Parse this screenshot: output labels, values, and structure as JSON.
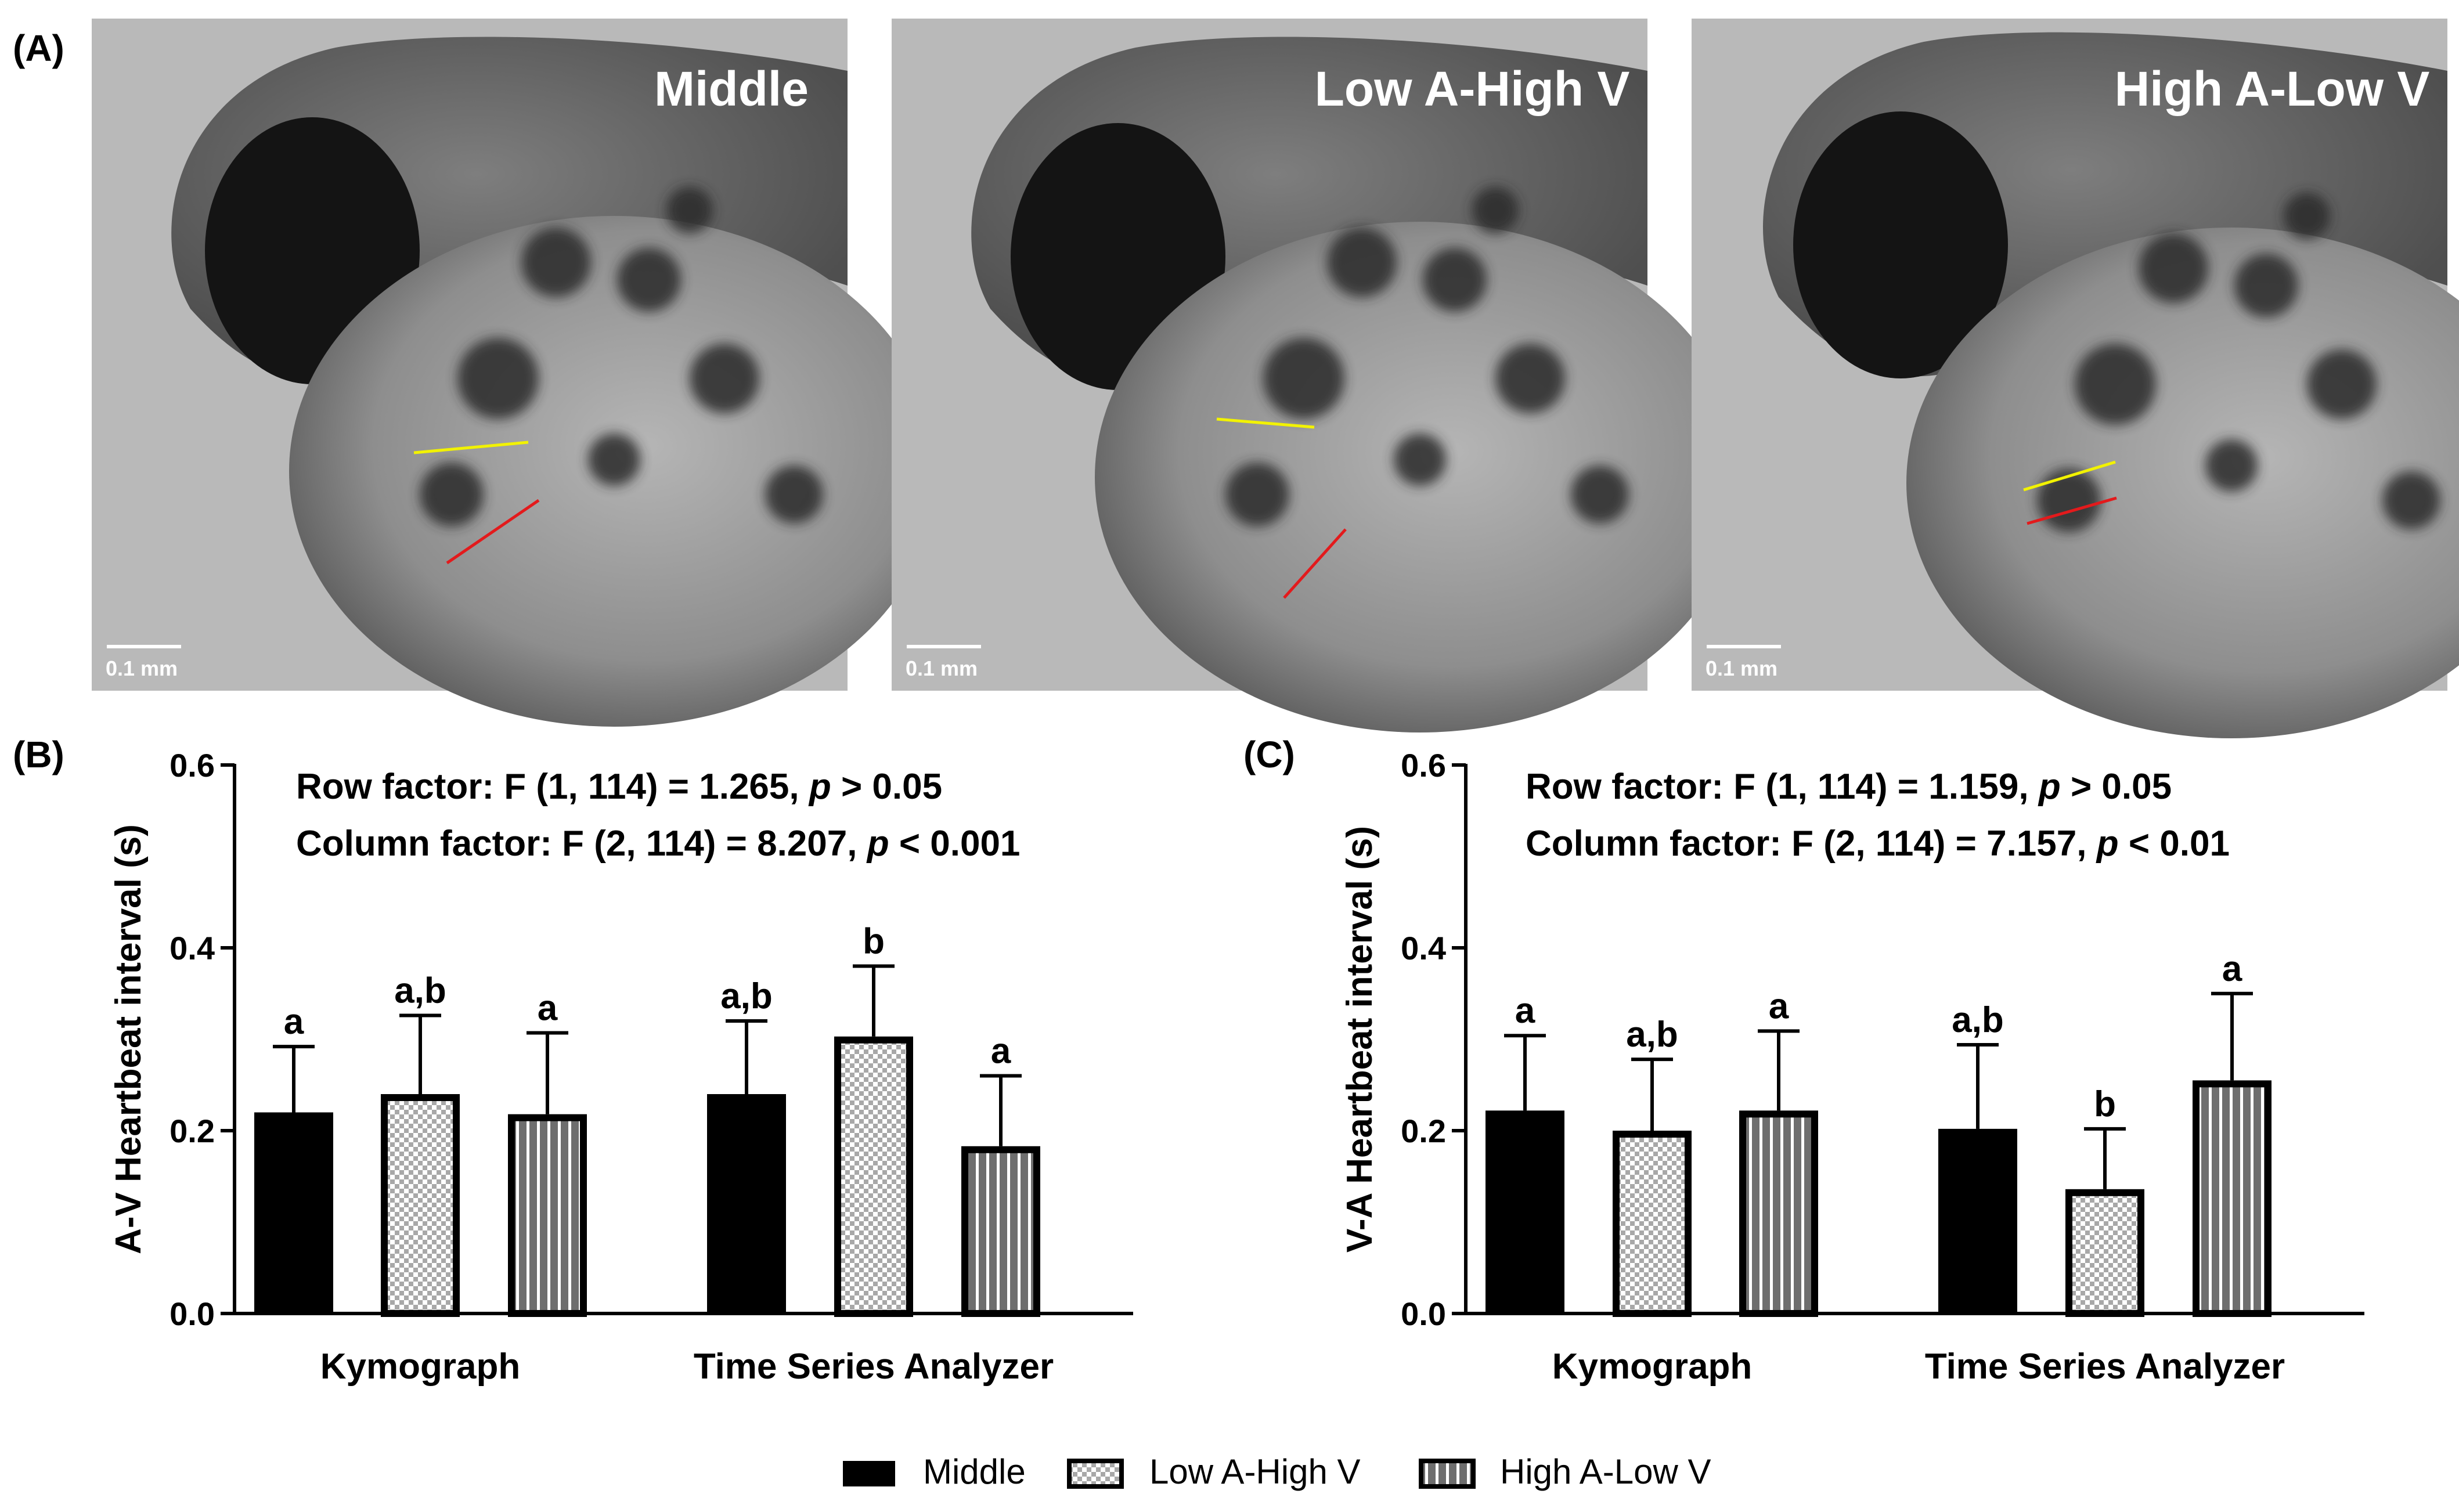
{
  "panel_labels": {
    "a": "(A)",
    "b": "(B)",
    "c": "(C)"
  },
  "images": [
    {
      "label": "Middle",
      "scale": "0.1 mm"
    },
    {
      "label": "Low A-High V",
      "scale": "0.1 mm"
    },
    {
      "label": "High A-Low V",
      "scale": "0.1 mm"
    }
  ],
  "colors": {
    "black": "#000000",
    "yellow": "#f2f200",
    "red": "#e31a1c",
    "gray": "#6e6e6e"
  },
  "legend": [
    {
      "label": "Middle",
      "pattern": "solid"
    },
    {
      "label": "Low A-High V",
      "pattern": "checker"
    },
    {
      "label": "High A-Low V",
      "pattern": "stripes"
    }
  ],
  "chart_data": [
    {
      "type": "bar",
      "panel": "B",
      "ylabel": "A-V Heartbeat interval (s)",
      "ylim": [
        0,
        0.6
      ],
      "yticks": [
        "0.0",
        "0.2",
        "0.4",
        "0.6"
      ],
      "categories": [
        "Kymograph",
        "Time Series Analyzer"
      ],
      "stats": {
        "row": {
          "prefix": "Row factor: F (1, 114) = 1.265, ",
          "p": "p",
          "suffix": " > 0.05"
        },
        "col": {
          "prefix": "Column factor: F (2, 114) = 8.207, ",
          "p": "p",
          "suffix": " < 0.001"
        }
      },
      "series": [
        {
          "name": "Middle",
          "values": [
            0.22,
            0.24
          ],
          "errors": [
            0.072,
            0.08
          ],
          "letters": [
            "a",
            "a,b"
          ]
        },
        {
          "name": "Low A-High V",
          "values": [
            0.24,
            0.303
          ],
          "errors": [
            0.086,
            0.077
          ],
          "letters": [
            "a,b",
            "b"
          ]
        },
        {
          "name": "High A-Low V",
          "values": [
            0.218,
            0.183
          ],
          "errors": [
            0.089,
            0.077
          ],
          "letters": [
            "a",
            "a"
          ]
        }
      ]
    },
    {
      "type": "bar",
      "panel": "C",
      "ylabel": "V-A Heartbeat interval (s)",
      "ylim": [
        0,
        0.6
      ],
      "yticks": [
        "0.0",
        "0.2",
        "0.4",
        "0.6"
      ],
      "categories": [
        "Kymograph",
        "Time Series Analyzer"
      ],
      "stats": {
        "row": {
          "prefix": "Row factor: F (1, 114) = 1.159, ",
          "p": "p",
          "suffix": " > 0.05"
        },
        "col": {
          "prefix": "Column factor: F (2, 114) = 7.157, ",
          "p": "p",
          "suffix": " < 0.01"
        }
      },
      "series": [
        {
          "name": "Middle",
          "values": [
            0.222,
            0.202
          ],
          "errors": [
            0.082,
            0.092
          ],
          "letters": [
            "a",
            "a,b"
          ]
        },
        {
          "name": "Low A-High V",
          "values": [
            0.2,
            0.136
          ],
          "errors": [
            0.078,
            0.066
          ],
          "letters": [
            "a,b",
            "b"
          ]
        },
        {
          "name": "High A-Low V",
          "values": [
            0.222,
            0.255
          ],
          "errors": [
            0.087,
            0.095
          ],
          "letters": [
            "a",
            "a"
          ]
        }
      ]
    }
  ]
}
